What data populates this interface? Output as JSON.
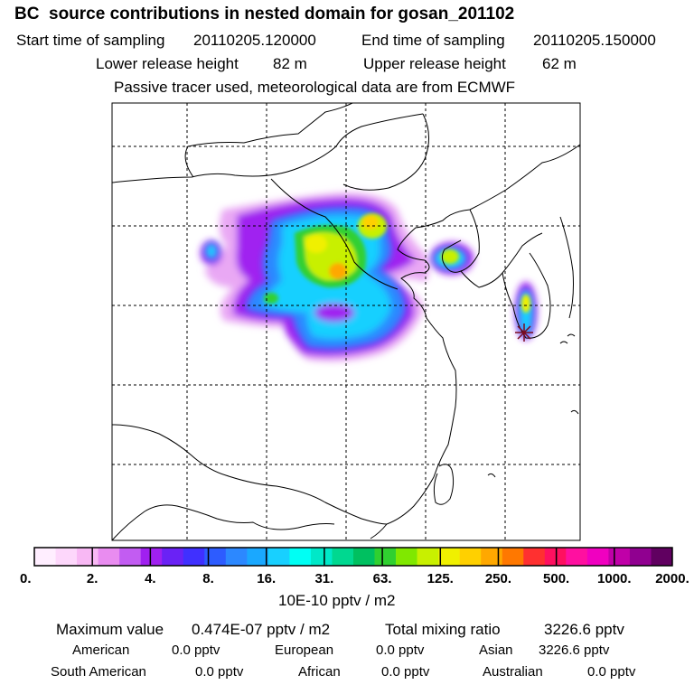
{
  "header": {
    "title": "BC  source contributions in nested domain for gosan_201102",
    "start_label": "Start time of sampling",
    "start_value": "20110205.120000",
    "end_label": "End time of sampling",
    "end_value": "20110205.150000",
    "lower_label": "Lower release height",
    "lower_value": "82 m",
    "upper_label": "Upper release height",
    "upper_value": "62 m",
    "note": "Passive tracer used, meteorological data are from ECMWF"
  },
  "colorbar": {
    "unit": "10E-10 pptv / m2",
    "tick_labels": [
      "0.",
      "2.",
      "4.",
      "8.",
      "16.",
      "31.",
      "63.",
      "125.",
      "250.",
      "500.",
      "1000.",
      "2000."
    ],
    "colors": [
      "#ffeeff",
      "#fdd7fb",
      "#f8b8f4",
      "#e98cf0",
      "#c25cf2",
      "#a020f0",
      "#6a22f5",
      "#4030ff",
      "#2d5cff",
      "#2c88ff",
      "#1aa8ff",
      "#18d0ff",
      "#00fff4",
      "#00e8c8",
      "#00d890",
      "#00c060",
      "#30d030",
      "#80e800",
      "#c8f000",
      "#f0f000",
      "#ffd000",
      "#ffa800",
      "#ff7800",
      "#ff3030",
      "#ff1060",
      "#ff10a0",
      "#f000c0",
      "#c000a8",
      "#900090",
      "#600060"
    ]
  },
  "stats": {
    "max_label": "Maximum value",
    "max_value": "0.474E-07 pptv / m2",
    "total_label": "Total mixing ratio",
    "total_value": "3226.6 pptv",
    "regions": [
      {
        "name": "American",
        "value": "0.0 pptv"
      },
      {
        "name": "European",
        "value": "0.0 pptv"
      },
      {
        "name": "Asian",
        "value": "3226.6 pptv"
      },
      {
        "name": "South American",
        "value": "0.0 pptv"
      },
      {
        "name": "African",
        "value": "0.0 pptv"
      },
      {
        "name": "Australian",
        "value": "0.0 pptv"
      }
    ]
  }
}
